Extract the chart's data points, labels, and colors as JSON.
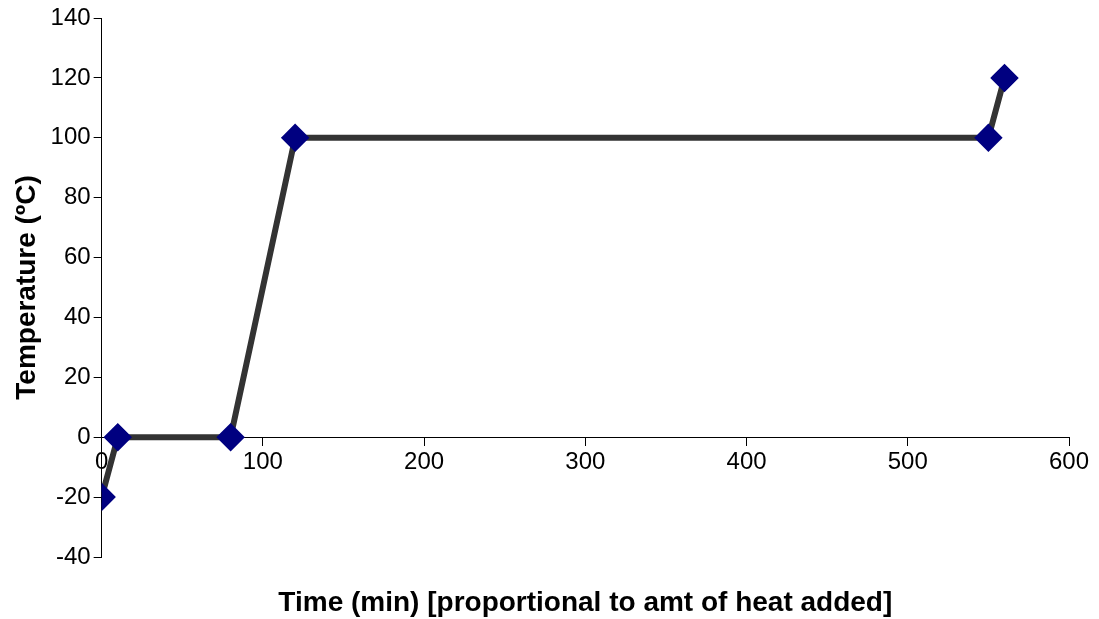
{
  "chart_data": {
    "type": "line",
    "xlabel": "Time (min) [proportional to amt of heat added]",
    "ylabel": "Temperature (ºC)",
    "x": [
      0,
      10,
      80,
      120,
      550,
      560
    ],
    "series": [
      {
        "color": "#333333",
        "values": [
          -20,
          0,
          0,
          100,
          100,
          120
        ]
      }
    ],
    "marker": "diamond",
    "line_style": "solid",
    "xlim": [
      0,
      600
    ],
    "xticks": [
      0,
      100,
      200,
      300,
      400,
      500,
      600
    ],
    "ylim": [
      -40,
      140
    ],
    "yticks": [
      -40,
      -20,
      0,
      20,
      40,
      60,
      80,
      100,
      120,
      140
    ],
    "grid": false,
    "legend": false
  }
}
